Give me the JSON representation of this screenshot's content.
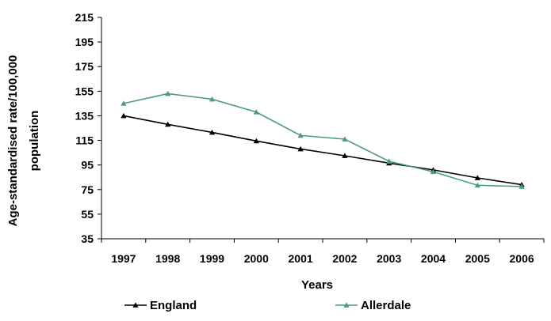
{
  "chart_data": {
    "type": "line",
    "title": "",
    "xlabel": "Years",
    "ylabel_line1": "Age-standardised rate/100,000",
    "ylabel_line2": "population",
    "categories": [
      "1997",
      "1998",
      "1999",
      "2000",
      "2001",
      "2002",
      "2003",
      "2004",
      "2005",
      "2006"
    ],
    "ylim": [
      35,
      215
    ],
    "yticks": [
      "215",
      "195",
      "175",
      "155",
      "135",
      "115",
      "95",
      "75",
      "55",
      "35"
    ],
    "grid": false,
    "legend_position": "bottom",
    "series": [
      {
        "name": "England",
        "color": "#000000",
        "marker": "triangle",
        "values": [
          135,
          128,
          121.5,
          114.5,
          108,
          102.5,
          96.5,
          91,
          84.5,
          79
        ]
      },
      {
        "name": "Allerdale",
        "color": "#4a9a86",
        "marker": "triangle",
        "values": [
          145,
          153,
          148.5,
          138,
          119,
          116,
          98,
          89.5,
          78.5,
          77.5
        ]
      }
    ]
  }
}
